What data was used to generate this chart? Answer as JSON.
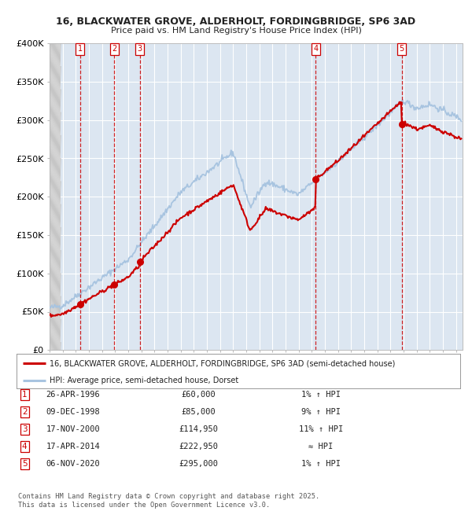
{
  "title_line1": "16, BLACKWATER GROVE, ALDERHOLT, FORDINGBRIDGE, SP6 3AD",
  "title_line2": "Price paid vs. HM Land Registry's House Price Index (HPI)",
  "ylim": [
    0,
    400000
  ],
  "yticks": [
    0,
    50000,
    100000,
    150000,
    200000,
    250000,
    300000,
    350000,
    400000
  ],
  "ytick_labels": [
    "£0",
    "£50K",
    "£100K",
    "£150K",
    "£200K",
    "£250K",
    "£300K",
    "£350K",
    "£400K"
  ],
  "plot_bg_color": "#dce6f1",
  "grid_color": "#ffffff",
  "hpi_color": "#a8c4e0",
  "price_color": "#cc0000",
  "sale_events": [
    {
      "num": 1,
      "date": "26-APR-1996",
      "price": 60000,
      "year": 1996.32,
      "hpi_change": "1% ↑ HPI"
    },
    {
      "num": 2,
      "date": "09-DEC-1998",
      "price": 85000,
      "year": 1998.94,
      "hpi_change": "9% ↑ HPI"
    },
    {
      "num": 3,
      "date": "17-NOV-2000",
      "price": 114950,
      "year": 2000.88,
      "hpi_change": "11% ↑ HPI"
    },
    {
      "num": 4,
      "date": "17-APR-2014",
      "price": 222950,
      "year": 2014.3,
      "hpi_change": "≈ HPI"
    },
    {
      "num": 5,
      "date": "06-NOV-2020",
      "price": 295000,
      "year": 2020.85,
      "hpi_change": "1% ↑ HPI"
    }
  ],
  "legend_line1": "16, BLACKWATER GROVE, ALDERHOLT, FORDINGBRIDGE, SP6 3AD (semi-detached house)",
  "legend_line2": "HPI: Average price, semi-detached house, Dorset",
  "footer": "Contains HM Land Registry data © Crown copyright and database right 2025.\nThis data is licensed under the Open Government Licence v3.0.",
  "xmin": 1994.0,
  "xmax": 2025.5
}
